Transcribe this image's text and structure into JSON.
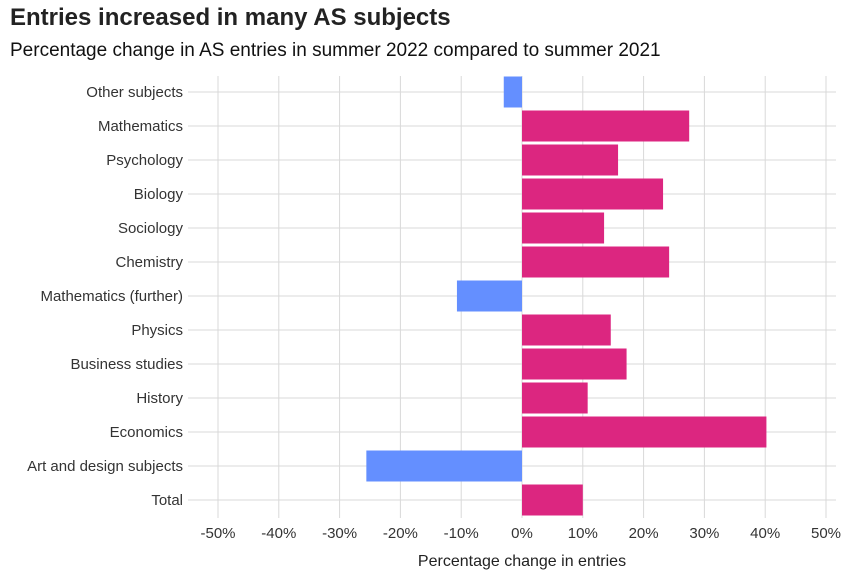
{
  "chart_data": {
    "type": "bar",
    "orientation": "horizontal",
    "title": "Entries increased in many AS subjects",
    "subtitle": "Percentage change in AS entries in summer 2022 compared to summer 2021",
    "xlabel": "Percentage change in entries",
    "ylabel": "",
    "xlim": [
      -0.5,
      0.5
    ],
    "xticks": [
      "-50%",
      "-40%",
      "-30%",
      "-20%",
      "-10%",
      "0%",
      "10%",
      "20%",
      "30%",
      "40%",
      "50%"
    ],
    "grid": true,
    "categories": [
      "Other subjects",
      "Mathematics",
      "Psychology",
      "Biology",
      "Sociology",
      "Chemistry",
      "Mathematics (further)",
      "Physics",
      "Business studies",
      "History",
      "Economics",
      "Art and design subjects",
      "Total"
    ],
    "values": [
      -0.03,
      0.275,
      0.158,
      0.232,
      0.135,
      0.242,
      -0.107,
      0.146,
      0.172,
      0.108,
      0.402,
      -0.256,
      0.1
    ],
    "colors": {
      "positive": "#DC2680",
      "negative": "#648FFF",
      "grid": "#d9d9d9"
    }
  }
}
